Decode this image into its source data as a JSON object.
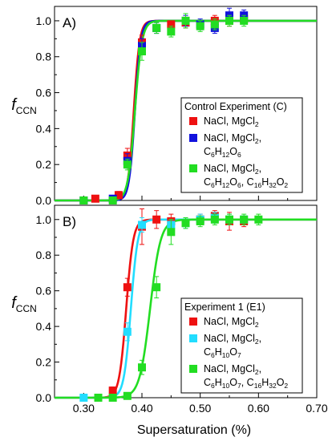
{
  "figure": {
    "xlabel": "Supersaturation (%)",
    "ylabel_main": "f",
    "ylabel_sub": "CCN"
  },
  "chart_data": [
    {
      "type": "scatter",
      "panel": "A)",
      "xlim": [
        0.25,
        0.7
      ],
      "ylim": [
        0.0,
        1.08
      ],
      "xticks": [
        "0.30",
        "0.40",
        "0.50",
        "0.60",
        "0.70"
      ],
      "yticks": [
        "0.0",
        "0.2",
        "0.4",
        "0.6",
        "0.8",
        "1.0"
      ],
      "show_x_tick_labels": false,
      "legend": {
        "title": "Control Experiment (C)",
        "position": "right-middle"
      },
      "series": [
        {
          "name_parts": [
            "NaCl, MgCl",
            "2"
          ],
          "label_lines": [
            [
              "NaCl, MgCl",
              "2"
            ]
          ],
          "color": "#ee1111",
          "fit": {
            "s50": 0.386,
            "width": 0.005
          },
          "points": [
            {
              "x": 0.32,
              "y": 0.01,
              "err": 0.01
            },
            {
              "x": 0.36,
              "y": 0.03,
              "err": 0.02
            },
            {
              "x": 0.375,
              "y": 0.25,
              "err": 0.04
            },
            {
              "x": 0.4,
              "y": 0.88,
              "err": 0.04
            },
            {
              "x": 0.45,
              "y": 0.98,
              "err": 0.02
            },
            {
              "x": 0.475,
              "y": 0.99,
              "err": 0.03
            },
            {
              "x": 0.525,
              "y": 1.0,
              "err": 0.03
            },
            {
              "x": 0.55,
              "y": 1.0,
              "err": 0.03
            },
            {
              "x": 0.575,
              "y": 1.01,
              "err": 0.02
            }
          ]
        },
        {
          "name_parts": [
            "NaCl, MgCl",
            "2",
            ", C",
            "6",
            "H",
            "12",
            "O",
            "6"
          ],
          "label_lines": [
            [
              "NaCl, MgCl",
              "2",
              ","
            ],
            [
              "C",
              "6",
              "H",
              "12",
              "O",
              "6"
            ]
          ],
          "color": "#1111dd",
          "fit": {
            "s50": 0.388,
            "width": 0.005
          },
          "points": [
            {
              "x": 0.3,
              "y": 0.0,
              "err": 0.01
            },
            {
              "x": 0.35,
              "y": 0.01,
              "err": 0.01
            },
            {
              "x": 0.375,
              "y": 0.22,
              "err": 0.04
            },
            {
              "x": 0.4,
              "y": 0.86,
              "err": 0.04
            },
            {
              "x": 0.425,
              "y": 0.96,
              "err": 0.03
            },
            {
              "x": 0.475,
              "y": 1.0,
              "err": 0.03
            },
            {
              "x": 0.5,
              "y": 0.98,
              "err": 0.03
            },
            {
              "x": 0.525,
              "y": 0.96,
              "err": 0.03
            },
            {
              "x": 0.55,
              "y": 1.03,
              "err": 0.04
            },
            {
              "x": 0.575,
              "y": 1.03,
              "err": 0.03
            }
          ]
        },
        {
          "name_parts": [
            "NaCl, MgCl",
            "2",
            ", C",
            "6",
            "H",
            "12",
            "O",
            "6",
            ", C",
            "16",
            "H",
            "32",
            "O",
            "2"
          ],
          "label_lines": [
            [
              "NaCl, MgCl",
              "2",
              ","
            ],
            [
              "C",
              "6",
              "H",
              "12",
              "O",
              "6",
              ", C",
              "16",
              "H",
              "32",
              "O",
              "2"
            ]
          ],
          "color": "#22dd22",
          "fit": {
            "s50": 0.388,
            "width": 0.006
          },
          "points": [
            {
              "x": 0.3,
              "y": 0.0,
              "err": 0.01
            },
            {
              "x": 0.35,
              "y": 0.0,
              "err": 0.01
            },
            {
              "x": 0.375,
              "y": 0.2,
              "err": 0.03
            },
            {
              "x": 0.4,
              "y": 0.83,
              "err": 0.05
            },
            {
              "x": 0.425,
              "y": 0.96,
              "err": 0.03
            },
            {
              "x": 0.45,
              "y": 0.94,
              "err": 0.03
            },
            {
              "x": 0.475,
              "y": 1.0,
              "err": 0.04
            },
            {
              "x": 0.5,
              "y": 0.97,
              "err": 0.03
            },
            {
              "x": 0.525,
              "y": 0.98,
              "err": 0.03
            },
            {
              "x": 0.55,
              "y": 1.0,
              "err": 0.03
            },
            {
              "x": 0.575,
              "y": 1.0,
              "err": 0.03
            }
          ]
        }
      ]
    },
    {
      "type": "scatter",
      "panel": "B)",
      "xlim": [
        0.25,
        0.7
      ],
      "ylim": [
        0.0,
        1.08
      ],
      "xticks": [
        "0.30",
        "0.40",
        "0.50",
        "0.60",
        "0.70"
      ],
      "yticks": [
        "0.0",
        "0.2",
        "0.4",
        "0.6",
        "0.8",
        "1.0"
      ],
      "show_x_tick_labels": true,
      "legend": {
        "title": "Experiment 1 (E1)",
        "position": "right-middle"
      },
      "series": [
        {
          "name_parts": [
            "NaCl, MgCl",
            "2"
          ],
          "label_lines": [
            [
              "NaCl, MgCl",
              "2"
            ]
          ],
          "color": "#ee1111",
          "fit": {
            "s50": 0.373,
            "width": 0.006
          },
          "points": [
            {
              "x": 0.35,
              "y": 0.04,
              "err": 0.02
            },
            {
              "x": 0.375,
              "y": 0.62,
              "err": 0.05
            },
            {
              "x": 0.4,
              "y": 0.96,
              "err": 0.1
            },
            {
              "x": 0.425,
              "y": 1.0,
              "err": 0.05
            },
            {
              "x": 0.45,
              "y": 0.99,
              "err": 0.04
            },
            {
              "x": 0.5,
              "y": 1.0,
              "err": 0.03
            },
            {
              "x": 0.525,
              "y": 1.02,
              "err": 0.03
            },
            {
              "x": 0.55,
              "y": 0.99,
              "err": 0.05
            },
            {
              "x": 0.575,
              "y": 0.99,
              "err": 0.03
            }
          ]
        },
        {
          "name_parts": [
            "NaCl, MgCl",
            "2",
            ", C",
            "6",
            "H",
            "10",
            "O",
            "7"
          ],
          "label_lines": [
            [
              "NaCl, MgCl",
              "2",
              ","
            ],
            [
              "C",
              "6",
              "H",
              "10",
              "O",
              "7"
            ]
          ],
          "color": "#22ddff",
          "fit": {
            "s50": 0.381,
            "width": 0.006
          },
          "points": [
            {
              "x": 0.3,
              "y": 0.0,
              "err": 0.01
            },
            {
              "x": 0.375,
              "y": 0.37,
              "err": 0.05
            },
            {
              "x": 0.4,
              "y": 0.97,
              "err": 0.04
            },
            {
              "x": 0.45,
              "y": 0.97,
              "err": 0.03
            },
            {
              "x": 0.475,
              "y": 0.98,
              "err": 0.03
            },
            {
              "x": 0.5,
              "y": 1.0,
              "err": 0.03
            },
            {
              "x": 0.525,
              "y": 1.01,
              "err": 0.03
            },
            {
              "x": 0.55,
              "y": 1.0,
              "err": 0.03
            },
            {
              "x": 0.575,
              "y": 1.0,
              "err": 0.02
            }
          ]
        },
        {
          "name_parts": [
            "NaCl, MgCl",
            "2",
            ", C",
            "6",
            "H",
            "10",
            "O",
            "7",
            ", C",
            "16",
            "H",
            "32",
            "O",
            "2"
          ],
          "label_lines": [
            [
              "NaCl, MgCl",
              "2",
              ","
            ],
            [
              "C",
              "6",
              "H",
              "10",
              "O",
              "7",
              ", C",
              "16",
              "H",
              "32",
              "O",
              "2"
            ]
          ],
          "color": "#22dd22",
          "fit": {
            "s50": 0.414,
            "width": 0.009
          },
          "points": [
            {
              "x": 0.325,
              "y": 0.0,
              "err": 0.01
            },
            {
              "x": 0.35,
              "y": 0.0,
              "err": 0.01
            },
            {
              "x": 0.375,
              "y": 0.01,
              "err": 0.01
            },
            {
              "x": 0.4,
              "y": 0.17,
              "err": 0.04
            },
            {
              "x": 0.425,
              "y": 0.62,
              "err": 0.06
            },
            {
              "x": 0.45,
              "y": 0.93,
              "err": 0.07
            },
            {
              "x": 0.475,
              "y": 0.98,
              "err": 0.03
            },
            {
              "x": 0.5,
              "y": 0.99,
              "err": 0.03
            },
            {
              "x": 0.525,
              "y": 1.0,
              "err": 0.03
            },
            {
              "x": 0.55,
              "y": 1.0,
              "err": 0.03
            },
            {
              "x": 0.575,
              "y": 1.0,
              "err": 0.03
            },
            {
              "x": 0.6,
              "y": 1.0,
              "err": 0.03
            }
          ]
        }
      ]
    }
  ]
}
